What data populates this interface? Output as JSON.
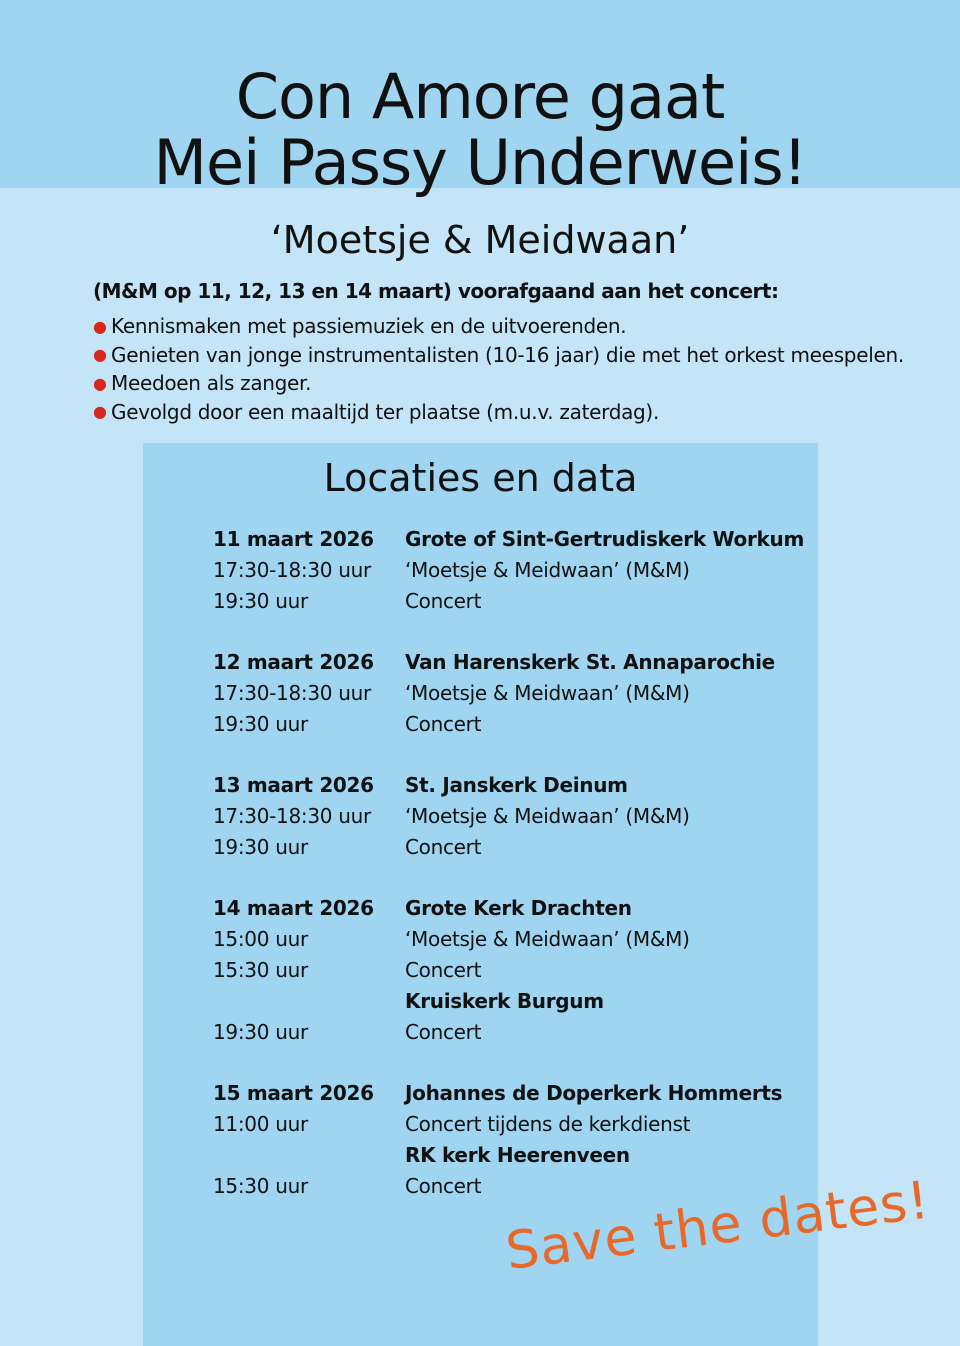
{
  "title_line1": "Con Amore gaat",
  "title_line2": "Mei Passy Underweis!",
  "subtitle": "‘Moetsje & Meidwaan’",
  "intro": "(M&M op 11, 12, 13 en 14 maart) voorafgaand aan het concert:",
  "bullets": [
    "Kennismaken met passiemuziek en de uitvoerenden.",
    "Genieten van jonge instrumentalisten (10-16 jaar) die met het orkest meespelen.",
    "Meedoen als zanger.",
    "Gevolgd door een maaltijd ter plaatse (m.u.v. zaterdag)."
  ],
  "locations_title": "Locaties en data",
  "schedule": [
    {
      "left": "11 maart 2026",
      "right": "Grote of Sint-Gertrudiskerk Workum",
      "bold": true
    },
    {
      "left": "17:30-18:30 uur",
      "right": "‘Moetsje & Meidwaan’ (M&M)"
    },
    {
      "left": "19:30 uur",
      "right": "Concert"
    },
    {
      "left": "12 maart 2026",
      "right": "Van Harenskerk St. Annaparochie",
      "bold": true
    },
    {
      "left": "17:30-18:30 uur",
      "right": "‘Moetsje & Meidwaan’ (M&M)"
    },
    {
      "left": "19:30 uur",
      "right": "Concert"
    },
    {
      "left": "13 maart 2026",
      "right": "St. Janskerk Deinum",
      "bold": true
    },
    {
      "left": "17:30-18:30 uur",
      "right": "‘Moetsje & Meidwaan’ (M&M)"
    },
    {
      "left": "19:30 uur",
      "right": "Concert"
    },
    {
      "left": "14 maart 2026",
      "right": "Grote Kerk Drachten",
      "bold": true
    },
    {
      "left": "15:00 uur",
      "right": "‘Moetsje & Meidwaan’ (M&M)"
    },
    {
      "left": "15:30 uur",
      "right": "Concert"
    },
    {
      "left": "",
      "right": "Kruiskerk Burgum",
      "boldRight": true
    },
    {
      "left": "19:30 uur",
      "right": "Concert"
    },
    {
      "left": "15 maart 2026",
      "right": "Johannes de Doperkerk Hommerts",
      "bold": true
    },
    {
      "left": "11:00 uur",
      "right": "Concert tijdens de kerkdienst"
    },
    {
      "left": "",
      "right": "RK kerk Heerenveen",
      "boldRight": true
    },
    {
      "left": "15:30 uur",
      "right": "Concert"
    }
  ],
  "save_the_dates": "Save the dates!",
  "colors": {
    "band": "#9fd5f0",
    "background": "#c3e5f7",
    "accent": "#e8682a",
    "bullet": "#d9261c"
  }
}
